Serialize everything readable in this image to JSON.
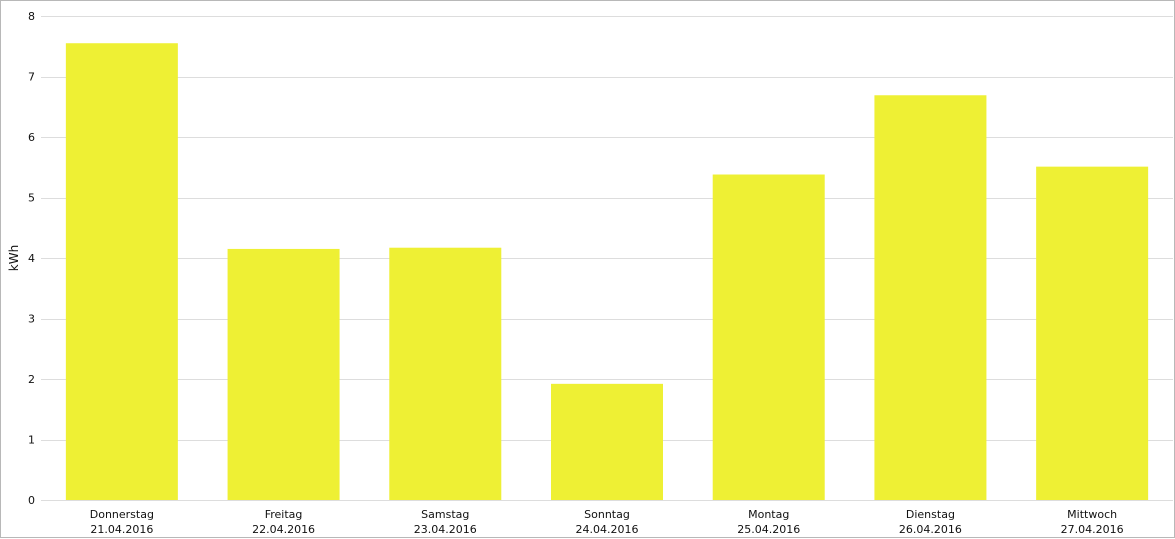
{
  "chart_data": {
    "type": "bar",
    "categories": [
      [
        "Donnerstag",
        "21.04.2016"
      ],
      [
        "Freitag",
        "22.04.2016"
      ],
      [
        "Samstag",
        "23.04.2016"
      ],
      [
        "Sonntag",
        "24.04.2016"
      ],
      [
        "Montag",
        "25.04.2016"
      ],
      [
        "Dienstag",
        "26.04.2016"
      ],
      [
        "Mittwoch",
        "27.04.2016"
      ]
    ],
    "values": [
      7.55,
      4.15,
      4.17,
      1.92,
      5.38,
      6.69,
      5.51
    ],
    "title": "",
    "xlabel": "",
    "ylabel": "kWh",
    "ylim": [
      0,
      8
    ],
    "yticks": [
      0,
      1,
      2,
      3,
      4,
      5,
      6,
      7,
      8
    ],
    "grid": true,
    "legend": "none",
    "colors": {
      "bar": "#eef034",
      "grid": "#dddddd",
      "text": "#111111",
      "border": "#b8b8b8"
    }
  }
}
